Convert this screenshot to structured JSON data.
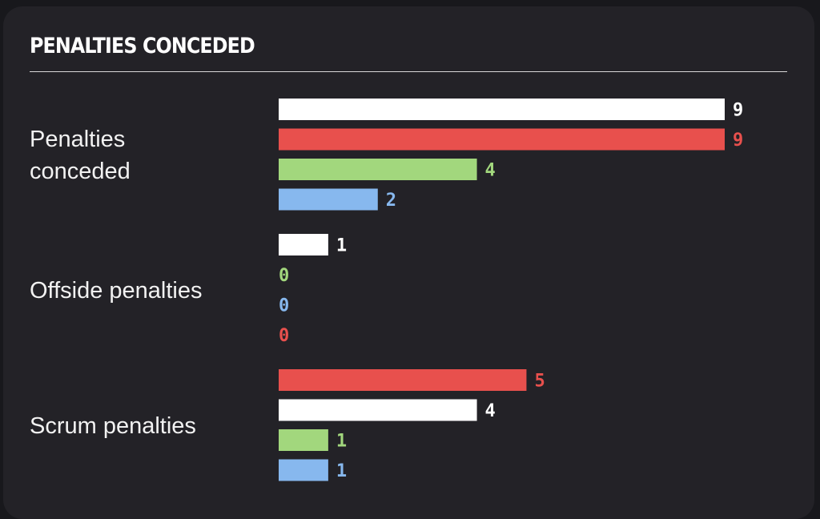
{
  "card": {
    "title": "PENALTIES CONCEDED"
  },
  "chart_data": {
    "type": "bar",
    "orientation": "horizontal",
    "xlim": [
      0,
      9
    ],
    "groups": [
      {
        "label": "Penalties conceded",
        "label_lines": [
          "Penalties",
          "conceded"
        ],
        "bars": [
          {
            "value": 9,
            "display": "9",
            "color": "#ffffff"
          },
          {
            "value": 9,
            "display": "9",
            "color": "#e8504d"
          },
          {
            "value": 4,
            "display": "4",
            "color": "#a2d77d"
          },
          {
            "value": 2,
            "display": "2",
            "color": "#87b8ee"
          }
        ]
      },
      {
        "label": "Offside penalties",
        "label_lines": [
          "Offside penalties"
        ],
        "bars": [
          {
            "value": 1,
            "display": "1",
            "color": "#ffffff"
          },
          {
            "value": 0,
            "display": "0",
            "color": "#a2d77d"
          },
          {
            "value": 0,
            "display": "0",
            "color": "#87b8ee"
          },
          {
            "value": 0,
            "display": "0",
            "color": "#e8504d"
          }
        ]
      },
      {
        "label": "Scrum penalties",
        "label_lines": [
          "Scrum penalties"
        ],
        "bars": [
          {
            "value": 5,
            "display": "5",
            "color": "#e8504d"
          },
          {
            "value": 4,
            "display": "4",
            "color": "#ffffff"
          },
          {
            "value": 1,
            "display": "1",
            "color": "#a2d77d"
          },
          {
            "value": 1,
            "display": "1",
            "color": "#87b8ee"
          }
        ]
      }
    ]
  }
}
